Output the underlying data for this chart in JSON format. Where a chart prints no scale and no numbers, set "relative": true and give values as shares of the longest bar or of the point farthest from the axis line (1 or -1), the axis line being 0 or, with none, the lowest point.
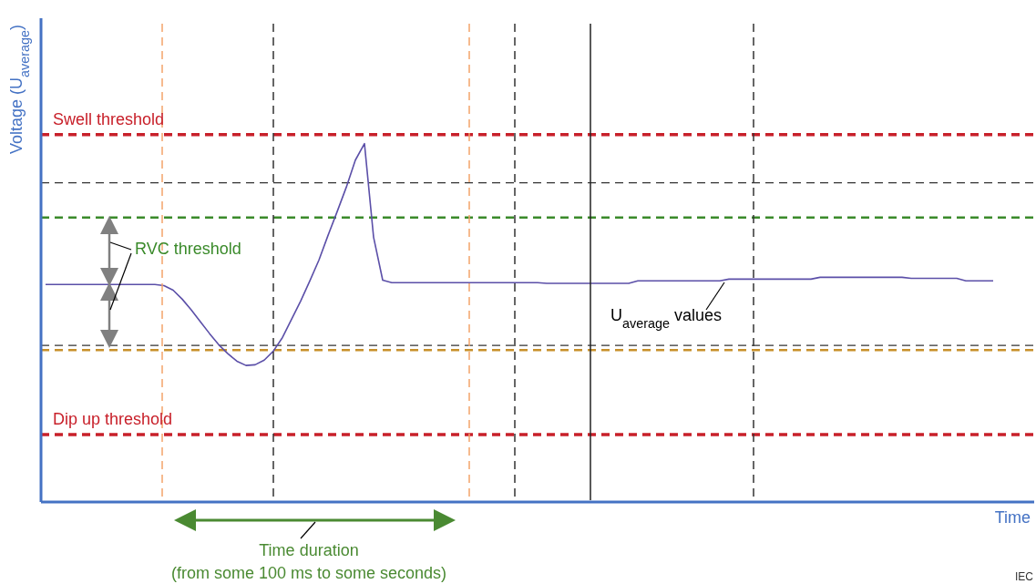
{
  "chart_data": {
    "type": "line",
    "relative": true,
    "xlabel": "Time",
    "ylabel": "Voltage (U$_{average}$)",
    "categories": [
      null,
      null,
      null,
      null,
      null,
      null,
      null,
      null,
      null,
      null,
      null,
      null,
      null,
      null,
      null,
      null,
      null,
      null,
      null,
      null,
      null,
      null,
      null,
      null,
      null,
      null,
      null,
      null,
      null,
      null,
      null,
      null,
      null,
      null,
      null,
      null,
      null,
      null,
      null,
      null,
      null,
      null,
      null,
      null,
      null,
      null,
      null,
      null,
      null,
      null,
      null,
      null,
      null,
      null,
      null,
      null,
      null,
      null,
      null,
      null,
      null,
      null,
      null,
      null,
      null,
      null,
      null,
      null,
      null,
      null,
      null,
      null,
      null,
      null,
      null,
      null,
      null,
      null,
      null,
      null,
      null,
      null,
      null,
      null,
      null,
      null,
      null,
      null,
      null,
      null,
      null,
      null,
      null,
      null,
      null,
      null,
      null,
      null,
      null,
      null,
      null,
      null,
      null,
      null,
      null
    ],
    "series": [
      {
        "color": "#5b4fa8",
        "values": [
          0.607,
          0.607,
          0.607,
          0.607,
          0.607,
          0.607,
          0.607,
          0.607,
          0.607,
          0.607,
          0.607,
          0.607,
          0.607,
          0.604,
          0.591,
          0.566,
          0.536,
          0.503,
          0.47,
          0.439,
          0.414,
          0.393,
          0.381,
          0.383,
          0.396,
          0.421,
          0.459,
          0.51,
          0.561,
          0.617,
          0.675,
          0.744,
          0.81,
          0.878,
          0.954,
          1,
          0.739,
          0.619,
          0.612,
          0.612,
          0.612,
          0.612,
          0.612,
          0.612,
          0.612,
          0.612,
          0.612,
          0.612,
          0.612,
          0.612,
          0.612,
          0.612,
          0.612,
          0.612,
          0.612,
          0.61,
          0.61,
          0.61,
          0.61,
          0.61,
          0.61,
          0.61,
          0.61,
          0.61,
          0.61,
          0.617,
          0.617,
          0.617,
          0.617,
          0.617,
          0.617,
          0.617,
          0.617,
          0.617,
          0.617,
          0.622,
          0.622,
          0.622,
          0.622,
          0.622,
          0.622,
          0.622,
          0.622,
          0.622,
          0.622,
          0.627,
          0.627,
          0.627,
          0.627,
          0.627,
          0.627,
          0.627,
          0.627,
          0.627,
          0.627,
          0.624,
          0.624,
          0.624,
          0.624,
          0.624,
          0.624,
          0.617,
          0.617,
          0.617,
          0.617
        ]
      }
    ],
    "ref_lines": [
      {
        "axis": "y",
        "value": 1.025,
        "label": "Swell threshold",
        "color": "#c8202a",
        "line_style": "dashed"
      },
      {
        "axis": "y",
        "value": 0.891,
        "color": "#333333",
        "line_style": "dashed"
      },
      {
        "axis": "y",
        "value": 0.794,
        "color": "#3a8a2a",
        "line_style": "dashed"
      },
      {
        "axis": "y",
        "value": 0.437,
        "color": "#333333",
        "line_style": "dashed"
      },
      {
        "axis": "y",
        "value": 0.424,
        "color": "#c8902a",
        "line_style": "dashed"
      },
      {
        "axis": "y",
        "value": 0.188,
        "label": "Dip up threshold",
        "color": "#c8202a",
        "line_style": "dashed"
      }
    ],
    "annotations": [
      "RVC threshold",
      "U$_{average}$ values",
      "Time duration",
      "(from some 100 ms to some seconds)",
      "IEC"
    ]
  }
}
